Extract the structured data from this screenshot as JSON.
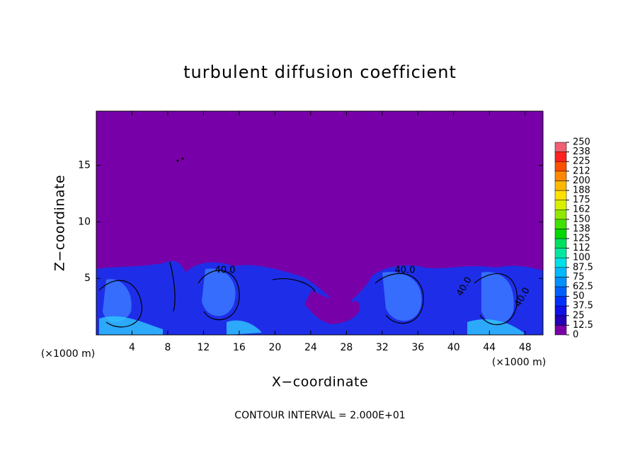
{
  "chart_data": {
    "type": "contour",
    "title": "turbulent diffusion coefficient",
    "x_label": "X−coordinate",
    "y_label": "Z−coordinate",
    "x_unit": "(×1000 m)",
    "footer": "CONTOUR INTERVAL = 2.000E+01",
    "contour_labels": [
      "40.0",
      "40.0",
      "40.0",
      "40.0"
    ],
    "xlim": [
      0,
      50
    ],
    "xticks": [
      4,
      8,
      12,
      16,
      20,
      24,
      28,
      32,
      36,
      40,
      44,
      48
    ],
    "ylim": [
      0,
      19.8
    ],
    "yticks": [
      5,
      10,
      15
    ],
    "colorbar": {
      "lim": [
        0,
        250
      ],
      "ticks": [
        0,
        12.5,
        25,
        37.5,
        50,
        62.5,
        75,
        87.5,
        100,
        {
          "value": 112.5,
          "label": "112"
        },
        125,
        {
          "value": 137.5,
          "label": "138"
        },
        150,
        {
          "value": 162.5,
          "label": "162"
        },
        175,
        {
          "value": 187.5,
          "label": "188"
        },
        200,
        {
          "value": 212.5,
          "label": "212"
        },
        225,
        {
          "value": 237.5,
          "label": "238"
        },
        250
      ],
      "colors": [
        "#7800a8",
        "#2400b8",
        "#1010e8",
        "#0030ff",
        "#0060ff",
        "#0090ff",
        "#00b8ff",
        "#00e0e8",
        "#00e8a0",
        "#00e060",
        "#00d800",
        "#40e000",
        "#90e800",
        "#d8f000",
        "#ffe000",
        "#ffb800",
        "#ff8800",
        "#ff5000",
        "#ff2020",
        "#f06070"
      ]
    }
  }
}
